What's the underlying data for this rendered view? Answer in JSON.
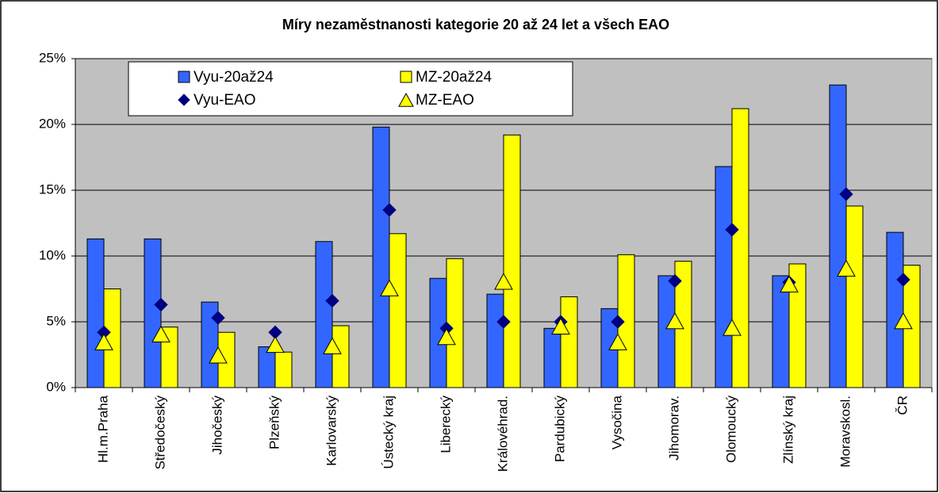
{
  "chart_data": {
    "type": "bar",
    "title": "Míry nezaměstnanosti kategorie 20 až 24 let a všech EAO",
    "categories": [
      "Hl.m.Praha",
      "Středočeský",
      "Jihočeský",
      "Plzeňský",
      "Karlovarský",
      "Ústecký kraj",
      "Liberecký",
      "Královéhrad.",
      "Pardubický",
      "Vysočina",
      "Jihomorav.",
      "Olomoucký",
      "Zlínský kraj",
      "Moravskosl.",
      "ČR"
    ],
    "series": [
      {
        "name": "Vyu-20až24",
        "color": "#3366ff",
        "mark": "bar",
        "values": [
          11.3,
          11.3,
          6.5,
          3.1,
          11.1,
          19.8,
          8.3,
          7.1,
          4.5,
          6.0,
          8.5,
          16.8,
          8.5,
          23.0,
          11.8
        ]
      },
      {
        "name": "MZ-20až24",
        "color": "#ffff00",
        "mark": "bar",
        "values": [
          7.5,
          4.6,
          4.2,
          2.7,
          4.7,
          11.7,
          9.8,
          19.2,
          6.9,
          10.1,
          9.6,
          21.2,
          9.4,
          13.8,
          9.3
        ]
      },
      {
        "name": "Vyu-EAO",
        "color": "#000080",
        "mark": "diamond",
        "values": [
          4.2,
          6.3,
          5.3,
          4.2,
          6.6,
          13.5,
          4.5,
          5.0,
          5.0,
          5.0,
          8.1,
          12.0,
          8.0,
          14.7,
          8.2
        ]
      },
      {
        "name": "MZ-EAO",
        "color": "#ffff00",
        "mark": "triangle",
        "values": [
          3.4,
          4.0,
          2.4,
          3.2,
          3.1,
          7.5,
          3.8,
          8.0,
          4.6,
          3.4,
          5.0,
          4.5,
          7.8,
          9.0,
          5.0
        ]
      }
    ],
    "ylim": [
      0,
      25
    ],
    "yticks": [
      {
        "value": 0,
        "label": "0%"
      },
      {
        "value": 5,
        "label": "5%"
      },
      {
        "value": 10,
        "label": "10%"
      },
      {
        "value": 15,
        "label": "15%"
      },
      {
        "value": 20,
        "label": "20%"
      },
      {
        "value": 25,
        "label": "25%"
      }
    ],
    "grid": true,
    "legend": "top-left"
  }
}
